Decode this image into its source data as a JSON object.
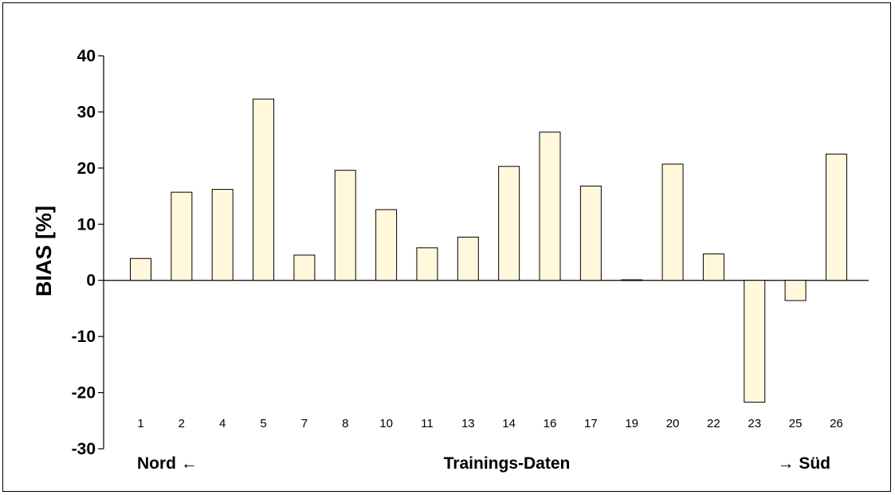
{
  "chart_data": {
    "type": "bar",
    "categories": [
      "1",
      "2",
      "4",
      "5",
      "7",
      "8",
      "10",
      "11",
      "13",
      "14",
      "16",
      "17",
      "19",
      "20",
      "22",
      "23",
      "25",
      "26"
    ],
    "values": [
      3.9,
      15.7,
      16.2,
      32.3,
      4.5,
      19.6,
      12.6,
      5.8,
      7.7,
      20.3,
      26.4,
      16.8,
      0.1,
      20.7,
      4.7,
      -21.7,
      -3.6,
      22.5
    ],
    "ylabel": "BIAS [%]",
    "xlabel": "Trainings-Daten",
    "left_note": "Nord ←",
    "right_note": "→ Süd",
    "ylim": [
      -30,
      40
    ],
    "yticks": [
      40,
      30,
      20,
      10,
      0,
      -10,
      -20,
      -30
    ],
    "bar_fill": "#fff8dc",
    "bar_stroke": "#000000",
    "grid": false
  }
}
